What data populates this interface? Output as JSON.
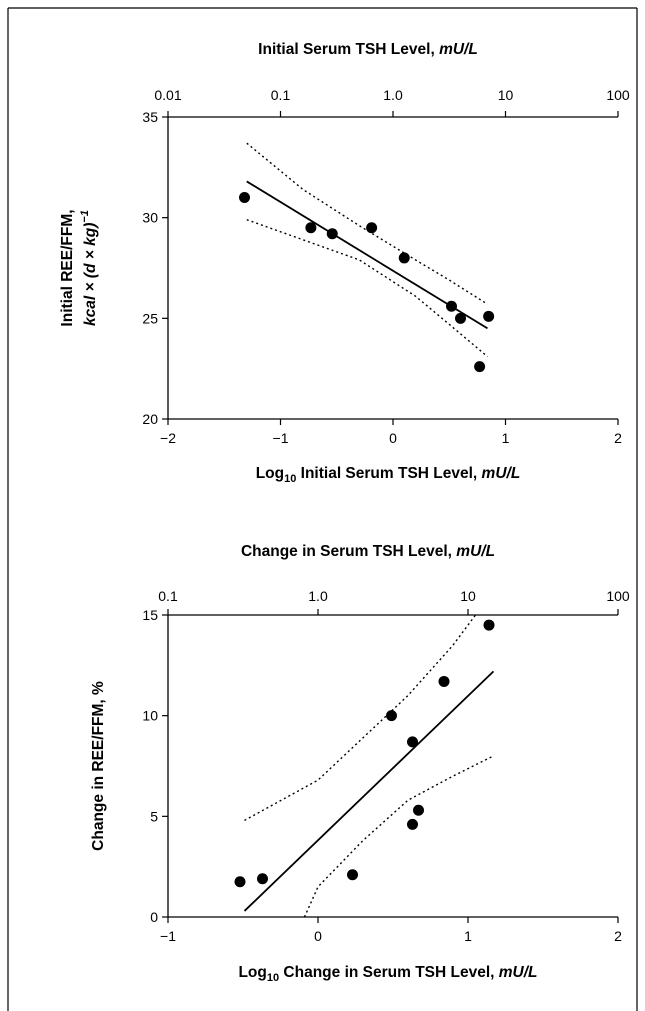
{
  "chart_data": [
    {
      "type": "scatter",
      "top_axis_title": "Initial Serum TSH Level, ",
      "top_axis_unit": "mU/L",
      "top_ticks": [
        "0.01",
        "0.1",
        "1.0",
        "10",
        "100"
      ],
      "xlabel_prefix": "Log",
      "xlabel_sub": "10",
      "xlabel_rest": " Initial Serum TSH Level, ",
      "xlabel_unit": "mU/L",
      "ylabel_line1": "Initial REE/FFM,",
      "ylabel_line2": "kcal × (d × kg)",
      "ylabel_sup": "−1",
      "xlim": [
        -2,
        2
      ],
      "ylim": [
        20,
        35
      ],
      "xticks": [
        -2,
        -1,
        0,
        1,
        2
      ],
      "xtick_labels": [
        "−2",
        "−1",
        "0",
        "1",
        "2"
      ],
      "yticks": [
        20,
        25,
        30,
        35
      ],
      "ytick_labels": [
        "20",
        "25",
        "30",
        "35"
      ],
      "grid": false,
      "points": [
        {
          "x": -1.32,
          "y": 31.0
        },
        {
          "x": -0.73,
          "y": 29.5
        },
        {
          "x": -0.54,
          "y": 29.2
        },
        {
          "x": -0.19,
          "y": 29.5
        },
        {
          "x": 0.1,
          "y": 28.0
        },
        {
          "x": 0.52,
          "y": 25.6
        },
        {
          "x": 0.6,
          "y": 25.0
        },
        {
          "x": 0.77,
          "y": 22.6
        },
        {
          "x": 0.85,
          "y": 25.1
        }
      ],
      "regression_line": {
        "x": [
          -1.3,
          0.84
        ],
        "y": [
          31.8,
          24.5
        ]
      },
      "ci_upper": {
        "x": [
          -1.3,
          -0.8,
          -0.3,
          0.2,
          0.5,
          0.84
        ],
        "y": [
          33.7,
          31.4,
          29.6,
          27.9,
          26.9,
          25.7
        ]
      },
      "ci_lower": {
        "x": [
          -1.3,
          -0.8,
          -0.3,
          0.2,
          0.5,
          0.84
        ],
        "y": [
          29.9,
          28.9,
          27.9,
          26.1,
          24.7,
          23.1
        ]
      }
    },
    {
      "type": "scatter",
      "top_axis_title": "Change in Serum TSH Level, ",
      "top_axis_unit": "mU/L",
      "top_ticks": [
        "0.1",
        "1.0",
        "10",
        "100"
      ],
      "xlabel_prefix": "Log",
      "xlabel_sub": "10",
      "xlabel_rest": " Change in Serum TSH Level, ",
      "xlabel_unit": "mU/L",
      "ylabel_line1": "Change in REE/FFM, %",
      "xlim": [
        -1,
        2
      ],
      "ylim": [
        0,
        15
      ],
      "xticks": [
        -1,
        0,
        1,
        2
      ],
      "xtick_labels": [
        "−1",
        "0",
        "1",
        "2"
      ],
      "yticks": [
        0,
        5,
        10,
        15
      ],
      "ytick_labels": [
        "0",
        "5",
        "10",
        "15"
      ],
      "grid": false,
      "points": [
        {
          "x": -0.52,
          "y": 1.75
        },
        {
          "x": -0.37,
          "y": 1.9
        },
        {
          "x": 0.23,
          "y": 2.1
        },
        {
          "x": 0.49,
          "y": 10.0
        },
        {
          "x": 0.63,
          "y": 8.7
        },
        {
          "x": 0.63,
          "y": 4.6
        },
        {
          "x": 0.67,
          "y": 5.3
        },
        {
          "x": 0.84,
          "y": 11.7
        },
        {
          "x": 1.14,
          "y": 14.5
        }
      ],
      "regression_line": {
        "x": [
          -0.49,
          1.17
        ],
        "y": [
          0.3,
          12.2
        ]
      },
      "ci_upper": {
        "x": [
          -0.49,
          0.0,
          0.3,
          0.6,
          0.9,
          1.05
        ],
        "y": [
          4.8,
          6.8,
          8.9,
          11.0,
          13.5,
          15.0
        ]
      },
      "ci_lower": {
        "x": [
          -0.09,
          0.0,
          0.3,
          0.6,
          0.9,
          1.17
        ],
        "y": [
          0.0,
          1.5,
          3.8,
          5.8,
          7.0,
          8.0
        ]
      }
    }
  ]
}
